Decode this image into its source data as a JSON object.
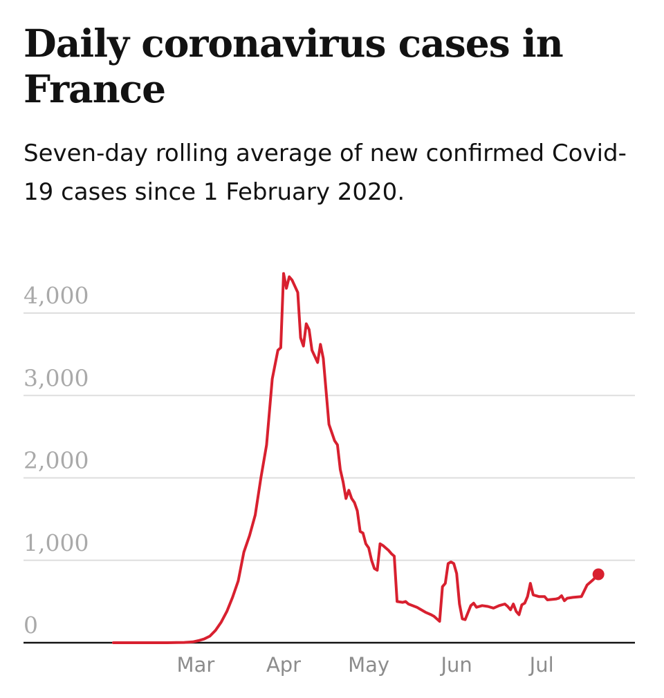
{
  "title": "Daily coronavirus cases in France",
  "subtitle": "Seven-day rolling average of new confirmed Covid-19 cases since 1 February 2020.",
  "colors": {
    "line": "#d8202f",
    "grid": "#dedede",
    "axis": "#121212",
    "tick_text": "#a9a9a9"
  },
  "chart_data": {
    "type": "line",
    "title": "Daily coronavirus cases in France",
    "subtitle": "Seven-day rolling average of new confirmed Covid-19 cases since 1 February 2020.",
    "xlabel": "",
    "ylabel": "",
    "ylim": [
      0,
      4000
    ],
    "yticks": [
      {
        "value": 0,
        "label": "0"
      },
      {
        "value": 1000,
        "label": "1,000"
      },
      {
        "value": 2000,
        "label": "2,000"
      },
      {
        "value": 3000,
        "label": "3,000"
      },
      {
        "value": 4000,
        "label": "4,000"
      }
    ],
    "xticks": [
      {
        "date": "2020-03-01",
        "label": "Mar"
      },
      {
        "date": "2020-04-01",
        "label": "Apr"
      },
      {
        "date": "2020-05-01",
        "label": "May"
      },
      {
        "date": "2020-06-01",
        "label": "Jun"
      },
      {
        "date": "2020-07-01",
        "label": "Jul"
      }
    ],
    "xrange": [
      "2020-02-01",
      "2020-07-29"
    ],
    "grid": true,
    "series": [
      {
        "last_point_marker": true,
        "points": [
          [
            "2020-02-01",
            0
          ],
          [
            "2020-02-20",
            0
          ],
          [
            "2020-02-26",
            3
          ],
          [
            "2020-02-29",
            10
          ],
          [
            "2020-03-02",
            25
          ],
          [
            "2020-03-04",
            45
          ],
          [
            "2020-03-06",
            80
          ],
          [
            "2020-03-08",
            150
          ],
          [
            "2020-03-10",
            250
          ],
          [
            "2020-03-12",
            380
          ],
          [
            "2020-03-14",
            550
          ],
          [
            "2020-03-16",
            750
          ],
          [
            "2020-03-18",
            1100
          ],
          [
            "2020-03-20",
            1300
          ],
          [
            "2020-03-22",
            1550
          ],
          [
            "2020-03-24",
            2000
          ],
          [
            "2020-03-26",
            2400
          ],
          [
            "2020-03-28",
            3200
          ],
          [
            "2020-03-30",
            3550
          ],
          [
            "2020-03-31",
            3580
          ],
          [
            "2020-04-01",
            4480
          ],
          [
            "2020-04-02",
            4300
          ],
          [
            "2020-04-03",
            4440
          ],
          [
            "2020-04-04",
            4400
          ],
          [
            "2020-04-06",
            4250
          ],
          [
            "2020-04-07",
            3700
          ],
          [
            "2020-04-08",
            3600
          ],
          [
            "2020-04-09",
            3870
          ],
          [
            "2020-04-10",
            3800
          ],
          [
            "2020-04-11",
            3550
          ],
          [
            "2020-04-13",
            3400
          ],
          [
            "2020-04-14",
            3620
          ],
          [
            "2020-04-15",
            3450
          ],
          [
            "2020-04-17",
            2650
          ],
          [
            "2020-04-19",
            2450
          ],
          [
            "2020-04-20",
            2400
          ],
          [
            "2020-04-21",
            2100
          ],
          [
            "2020-04-22",
            1950
          ],
          [
            "2020-04-23",
            1750
          ],
          [
            "2020-04-24",
            1850
          ],
          [
            "2020-04-25",
            1750
          ],
          [
            "2020-04-26",
            1700
          ],
          [
            "2020-04-27",
            1600
          ],
          [
            "2020-04-28",
            1350
          ],
          [
            "2020-04-29",
            1330
          ],
          [
            "2020-04-30",
            1200
          ],
          [
            "2020-05-01",
            1150
          ],
          [
            "2020-05-02",
            1000
          ],
          [
            "2020-05-03",
            900
          ],
          [
            "2020-05-04",
            880
          ],
          [
            "2020-05-05",
            1200
          ],
          [
            "2020-05-06",
            1180
          ],
          [
            "2020-05-07",
            1150
          ],
          [
            "2020-05-08",
            1120
          ],
          [
            "2020-05-09",
            1080
          ],
          [
            "2020-05-10",
            1050
          ],
          [
            "2020-05-11",
            500
          ],
          [
            "2020-05-13",
            490
          ],
          [
            "2020-05-14",
            500
          ],
          [
            "2020-05-15",
            470
          ],
          [
            "2020-05-18",
            430
          ],
          [
            "2020-05-19",
            410
          ],
          [
            "2020-05-21",
            370
          ],
          [
            "2020-05-23",
            340
          ],
          [
            "2020-05-24",
            320
          ],
          [
            "2020-05-26",
            260
          ],
          [
            "2020-05-27",
            680
          ],
          [
            "2020-05-28",
            720
          ],
          [
            "2020-05-29",
            960
          ],
          [
            "2020-05-30",
            980
          ],
          [
            "2020-05-31",
            960
          ],
          [
            "2020-06-01",
            840
          ],
          [
            "2020-06-02",
            470
          ],
          [
            "2020-06-03",
            290
          ],
          [
            "2020-06-04",
            280
          ],
          [
            "2020-06-06",
            450
          ],
          [
            "2020-06-07",
            480
          ],
          [
            "2020-06-08",
            430
          ],
          [
            "2020-06-10",
            450
          ],
          [
            "2020-06-12",
            440
          ],
          [
            "2020-06-14",
            420
          ],
          [
            "2020-06-16",
            450
          ],
          [
            "2020-06-18",
            470
          ],
          [
            "2020-06-19",
            440
          ],
          [
            "2020-06-20",
            400
          ],
          [
            "2020-06-21",
            470
          ],
          [
            "2020-06-22",
            380
          ],
          [
            "2020-06-23",
            340
          ],
          [
            "2020-06-24",
            460
          ],
          [
            "2020-06-25",
            480
          ],
          [
            "2020-06-26",
            560
          ],
          [
            "2020-06-27",
            720
          ],
          [
            "2020-06-28",
            580
          ],
          [
            "2020-06-30",
            560
          ],
          [
            "2020-07-02",
            560
          ],
          [
            "2020-07-03",
            520
          ],
          [
            "2020-07-06",
            530
          ],
          [
            "2020-07-07",
            540
          ],
          [
            "2020-07-08",
            570
          ],
          [
            "2020-07-09",
            510
          ],
          [
            "2020-07-10",
            540
          ],
          [
            "2020-07-12",
            550
          ],
          [
            "2020-07-15",
            560
          ],
          [
            "2020-07-17",
            700
          ],
          [
            "2020-07-19",
            760
          ],
          [
            "2020-07-21",
            830
          ]
        ]
      }
    ]
  }
}
